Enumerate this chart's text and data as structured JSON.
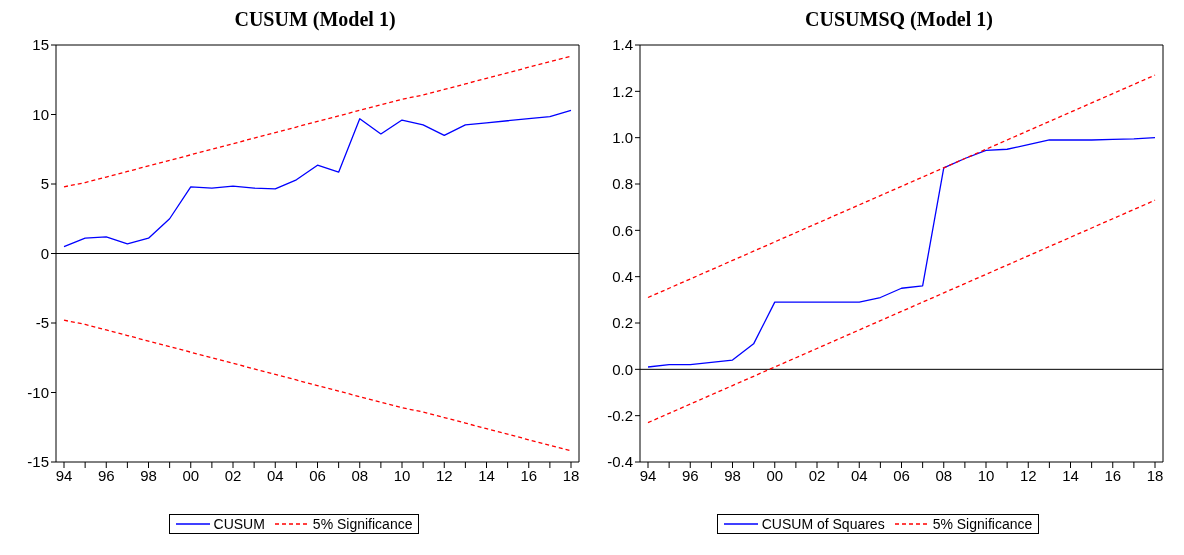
{
  "chart_data": [
    {
      "type": "line",
      "title": "CUSUM (Model 1)",
      "categories": [
        "94",
        null,
        "96",
        null,
        "98",
        null,
        "00",
        null,
        "02",
        null,
        "04",
        null,
        "06",
        null,
        "08",
        null,
        "10",
        null,
        "12",
        null,
        "14",
        null,
        "16",
        null,
        "18"
      ],
      "series": [
        {
          "name": "CUSUM",
          "color": "#0000ff",
          "line_style": "solid",
          "values": [
            0.5,
            1.1,
            1.2,
            0.7,
            1.1,
            2.5,
            4.8,
            4.7,
            4.85,
            4.7,
            4.65,
            5.3,
            6.35,
            5.85,
            9.7,
            8.6,
            9.6,
            9.25,
            8.5,
            9.25,
            9.4,
            9.55,
            9.7,
            9.85,
            10.3
          ]
        },
        {
          "name": "5% Significance",
          "color": "#ff0000",
          "line_style": "dashed",
          "values": [
            4.8,
            5.1,
            5.5,
            5.9,
            6.3,
            6.7,
            7.1,
            7.5,
            7.9,
            8.3,
            8.7,
            9.1,
            9.5,
            9.9,
            10.3,
            10.7,
            11.1,
            11.4,
            11.8,
            12.2,
            12.6,
            13.0,
            13.4,
            13.8,
            14.2
          ]
        },
        {
          "color": "#ff0000",
          "line_style": "dashed",
          "values": [
            -4.8,
            -5.1,
            -5.5,
            -5.9,
            -6.3,
            -6.7,
            -7.1,
            -7.5,
            -7.9,
            -8.3,
            -8.7,
            -9.1,
            -9.5,
            -9.9,
            -10.3,
            -10.7,
            -11.1,
            -11.4,
            -11.8,
            -12.2,
            -12.6,
            -13.0,
            -13.4,
            -13.8,
            -14.2
          ]
        }
      ],
      "ylim": [
        -15,
        15
      ],
      "yticks": [
        -15,
        -10,
        -5,
        0,
        5,
        10,
        15
      ],
      "ref_lines": [
        {
          "axis": "y",
          "value": 0,
          "color": "#000000"
        }
      ],
      "grid": false,
      "legend": "bottom",
      "marker": "none"
    },
    {
      "type": "line",
      "title": "CUSUMSQ (Model 1)",
      "categories": [
        "94",
        null,
        "96",
        null,
        "98",
        null,
        "00",
        null,
        "02",
        null,
        "04",
        null,
        "06",
        null,
        "08",
        null,
        "10",
        null,
        "12",
        null,
        "14",
        null,
        "16",
        null,
        "18"
      ],
      "series": [
        {
          "name": "CUSUM of Squares",
          "color": "#0000ff",
          "line_style": "solid",
          "values": [
            0.01,
            0.02,
            0.02,
            0.03,
            0.04,
            0.11,
            0.29,
            0.29,
            0.29,
            0.29,
            0.29,
            0.31,
            0.35,
            0.36,
            0.87,
            0.91,
            0.945,
            0.95,
            0.97,
            0.99,
            0.99,
            0.99,
            0.993,
            0.995,
            1.0
          ]
        },
        {
          "name": "5% Significance",
          "color": "#ff0000",
          "line_style": "dashed",
          "values": [
            0.31,
            0.35,
            0.39,
            0.43,
            0.47,
            0.51,
            0.55,
            0.59,
            0.63,
            0.67,
            0.71,
            0.75,
            0.79,
            0.83,
            0.87,
            0.91,
            0.95,
            0.99,
            1.03,
            1.07,
            1.11,
            1.15,
            1.19,
            1.23,
            1.27
          ]
        },
        {
          "color": "#ff0000",
          "line_style": "dashed",
          "values": [
            -0.23,
            -0.19,
            -0.15,
            -0.11,
            -0.07,
            -0.03,
            0.01,
            0.05,
            0.09,
            0.13,
            0.17,
            0.21,
            0.25,
            0.29,
            0.33,
            0.37,
            0.41,
            0.45,
            0.49,
            0.53,
            0.57,
            0.61,
            0.65,
            0.69,
            0.73
          ]
        }
      ],
      "ylim": [
        -0.4,
        1.4
      ],
      "yticks": [
        {
          "value": -0.4,
          "label": "-0.4"
        },
        {
          "value": -0.2,
          "label": "-0.2"
        },
        {
          "value": 0,
          "label": "0.0"
        },
        {
          "value": 0.2,
          "label": "0.2"
        },
        {
          "value": 0.4,
          "label": "0.4"
        },
        {
          "value": 0.6,
          "label": "0.6"
        },
        {
          "value": 0.8,
          "label": "0.8"
        },
        {
          "value": 1.0,
          "label": "1.0"
        },
        {
          "value": 1.2,
          "label": "1.2"
        },
        {
          "value": 1.4,
          "label": "1.4"
        }
      ],
      "ref_lines": [
        {
          "axis": "y",
          "value": 0,
          "color": "#000000"
        }
      ],
      "grid": false,
      "legend": "bottom",
      "marker": "none"
    }
  ]
}
